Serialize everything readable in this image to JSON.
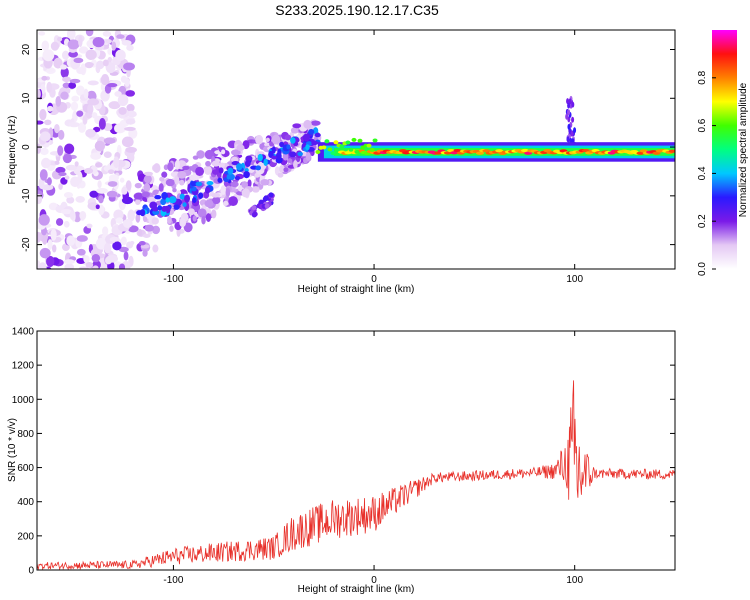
{
  "title": "S233.2025.190.12.17.C35",
  "chart_data": [
    {
      "type": "heatmap",
      "xlabel": "Height of straight line (km)",
      "ylabel": "Frequency (Hz)",
      "xlim": [
        -168,
        150
      ],
      "ylim": [
        -25,
        24
      ],
      "xticks": [
        -100,
        0,
        100
      ],
      "yticks": [
        -20,
        -10,
        0,
        10,
        20
      ],
      "colorbar": {
        "label": "Normalized spectral amplitude",
        "range": [
          0,
          1
        ],
        "ticks": [
          "0.0",
          "0.2",
          "0.4",
          "0.6",
          "0.8"
        ]
      },
      "features": [
        {
          "x_range": [
            -168,
            -120
          ],
          "y_range": [
            -25,
            24
          ],
          "amplitude": 0.1
        },
        {
          "x_range": [
            -118,
            -28
          ],
          "y_center_from": -14,
          "y_center_to": 2,
          "amplitude": 0.25
        },
        {
          "x_range": [
            -62,
            -50
          ],
          "y_center_from": -14,
          "y_center_to": -10,
          "amplitude": 0.1
        },
        {
          "x_range": [
            -28,
            150
          ],
          "y_center": -1,
          "amplitude": 0.9
        },
        {
          "x_range": [
            96,
            100
          ],
          "y_range": [
            0,
            10
          ],
          "amplitude": 0.2
        }
      ]
    },
    {
      "type": "line",
      "xlabel": "Height of straight line (km)",
      "ylabel": "SNR (10 * v/v)",
      "xlim": [
        -168,
        150
      ],
      "ylim": [
        0,
        1400
      ],
      "xticks": [
        -100,
        0,
        100
      ],
      "yticks": [
        0,
        200,
        400,
        600,
        800,
        1000,
        1200,
        1400
      ],
      "color": "#e8302a",
      "trend": {
        "x": [
          -168,
          -120,
          -100,
          -50,
          -40,
          -20,
          0,
          20,
          30,
          80,
          90,
          96,
          100,
          103,
          110,
          150
        ],
        "y": [
          25,
          30,
          80,
          130,
          220,
          300,
          330,
          470,
          540,
          570,
          580,
          630,
          600,
          560,
          565,
          560
        ],
        "noise": [
          20,
          25,
          50,
          70,
          110,
          120,
          110,
          60,
          30,
          30,
          50,
          150,
          600,
          250,
          30,
          30
        ]
      }
    }
  ]
}
